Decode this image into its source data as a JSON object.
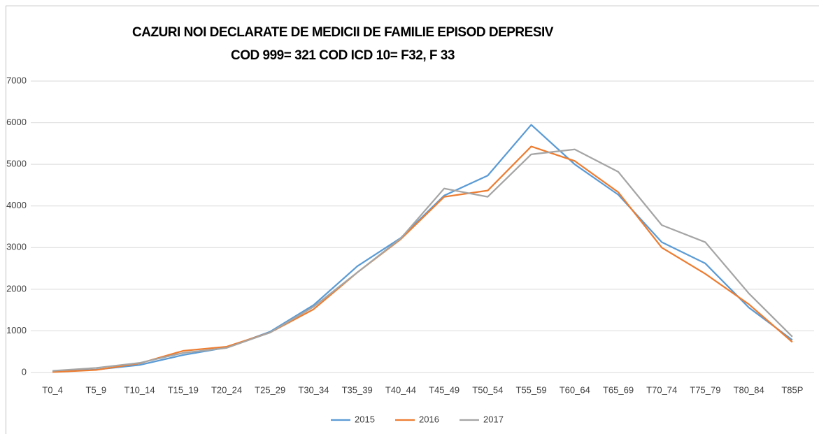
{
  "chart_data": {
    "type": "line",
    "title": "CAZURI NOI DECLARATE  DE MEDICII DE FAMILIE  EPISOD DEPRESIV",
    "subtitle": "COD 999=  321  COD ICD 10= F32, F 33",
    "categories": [
      "T0_4",
      "T5_9",
      "T10_14",
      "T15_19",
      "T20_24",
      "T25_29",
      "T30_34",
      "T35_39",
      "T40_44",
      "T45_49",
      "T50_54",
      "T55_59",
      "T60_64",
      "T65_69",
      "T70_74",
      "T75_79",
      "T80_84",
      "T85P"
    ],
    "series": [
      {
        "name": "2015",
        "color": "#5b9bd5",
        "values": [
          20,
          70,
          180,
          420,
          600,
          980,
          1620,
          2550,
          3230,
          4250,
          4730,
          5950,
          5000,
          4270,
          3130,
          2620,
          1560,
          780
        ]
      },
      {
        "name": "2016",
        "color": "#ed7d31",
        "values": [
          10,
          60,
          220,
          520,
          620,
          960,
          1520,
          2400,
          3200,
          4220,
          4370,
          5430,
          5080,
          4330,
          3000,
          2370,
          1640,
          730
        ]
      },
      {
        "name": "2017",
        "color": "#a5a5a5",
        "values": [
          40,
          110,
          230,
          470,
          590,
          960,
          1580,
          2400,
          3220,
          4420,
          4220,
          5240,
          5360,
          4820,
          3540,
          3130,
          1900,
          860
        ]
      }
    ],
    "ylim": [
      0,
      7000
    ],
    "yticks": [
      0,
      1000,
      2000,
      3000,
      4000,
      5000,
      6000,
      7000
    ],
    "grid": true,
    "legend": "bottom"
  }
}
